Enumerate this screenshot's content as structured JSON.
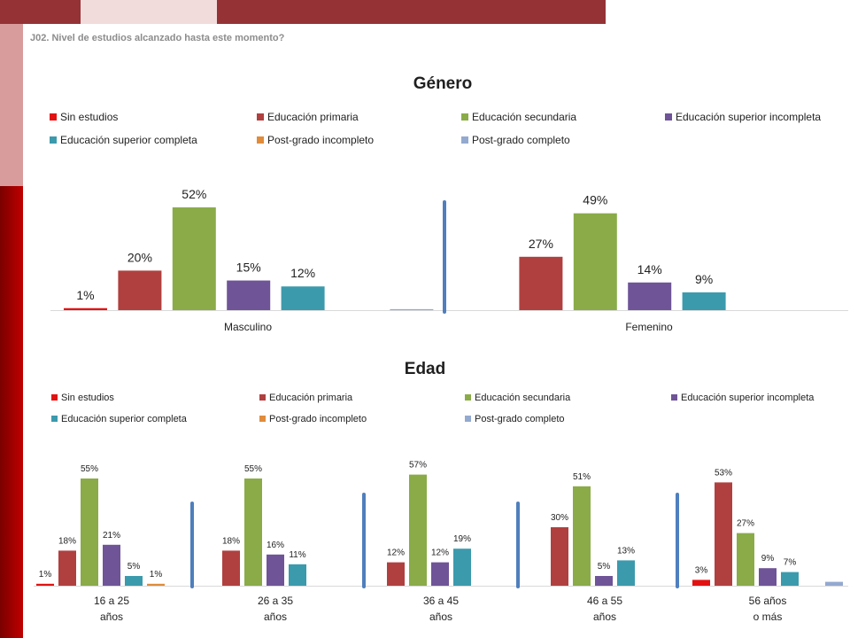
{
  "question": "J02. Nivel de estudios alcanzado hasta este momento?",
  "colors": {
    "Sin estudios": "#e31212",
    "Educación primaria": "#b0403f",
    "Educación secundaria": "#8aab48",
    "Educación superior incompleta": "#6f5497",
    "Educación superior completa": "#3c9aad",
    "Post-grado incompleto": "#e08c3b",
    "Post-grado completo": "#93a9cf",
    "separator": "#4f7fbd",
    "accent_dark": "#943236",
    "accent_light": "#d99c9c"
  },
  "chart_data": [
    {
      "type": "bar",
      "title": "Género",
      "legend": [
        "Sin estudios",
        "Educación primaria",
        "Educación secundaria",
        "Educación superior incompleta",
        "Educación superior completa",
        "Post-grado incompleto",
        "Post-grado completo"
      ],
      "categories": [
        "Masculino",
        "Femenino"
      ],
      "series": [
        {
          "name": "Sin estudios",
          "values": [
            1,
            0
          ],
          "labels": [
            "1%",
            ""
          ]
        },
        {
          "name": "Educación primaria",
          "values": [
            20,
            27
          ],
          "labels": [
            "20%",
            "27%"
          ]
        },
        {
          "name": "Educación secundaria",
          "values": [
            52,
            49
          ],
          "labels": [
            "52%",
            "49%"
          ]
        },
        {
          "name": "Educación superior incompleta",
          "values": [
            15,
            14
          ],
          "labels": [
            "15%",
            "14%"
          ]
        },
        {
          "name": "Educación superior completa",
          "values": [
            12,
            9
          ],
          "labels": [
            "12%",
            "9%"
          ]
        },
        {
          "name": "Post-grado incompleto",
          "values": [
            0,
            0
          ],
          "labels": [
            "",
            ""
          ]
        },
        {
          "name": "Post-grado completo",
          "values": [
            0.5,
            0
          ],
          "labels": [
            "",
            ""
          ]
        }
      ]
    },
    {
      "type": "bar",
      "title": "Edad",
      "legend": [
        "Sin estudios",
        "Educación primaria",
        "Educación secundaria",
        "Educación superior incompleta",
        "Educación superior completa",
        "Post-grado incompleto",
        "Post-grado completo"
      ],
      "categories": [
        "16 a 25\naños",
        "26 a 35\naños",
        "36 a 45\naños",
        "46 a 55\naños",
        "56 años\no más"
      ],
      "series": [
        {
          "name": "Sin estudios",
          "values": [
            1,
            0,
            0,
            0,
            3
          ],
          "labels": [
            "1%",
            "",
            "",
            "",
            "3%"
          ]
        },
        {
          "name": "Educación primaria",
          "values": [
            18,
            18,
            12,
            30,
            53
          ],
          "labels": [
            "18%",
            "18%",
            "12%",
            "30%",
            "53%"
          ]
        },
        {
          "name": "Educación secundaria",
          "values": [
            55,
            55,
            57,
            51,
            27
          ],
          "labels": [
            "55%",
            "55%",
            "57%",
            "51%",
            "27%"
          ]
        },
        {
          "name": "Educación superior incompleta",
          "values": [
            21,
            16,
            12,
            5,
            9
          ],
          "labels": [
            "21%",
            "16%",
            "12%",
            "5%",
            "9%"
          ]
        },
        {
          "name": "Educación superior completa",
          "values": [
            5,
            11,
            19,
            13,
            7
          ],
          "labels": [
            "5%",
            "11%",
            "19%",
            "13%",
            "7%"
          ]
        },
        {
          "name": "Post-grado incompleto",
          "values": [
            1,
            0,
            0,
            0,
            0
          ],
          "labels": [
            "1%",
            "",
            "",
            "",
            ""
          ]
        },
        {
          "name": "Post-grado completo",
          "values": [
            0,
            0,
            0,
            0,
            2
          ],
          "labels": [
            "",
            "",
            "",
            "",
            ""
          ]
        }
      ]
    }
  ]
}
